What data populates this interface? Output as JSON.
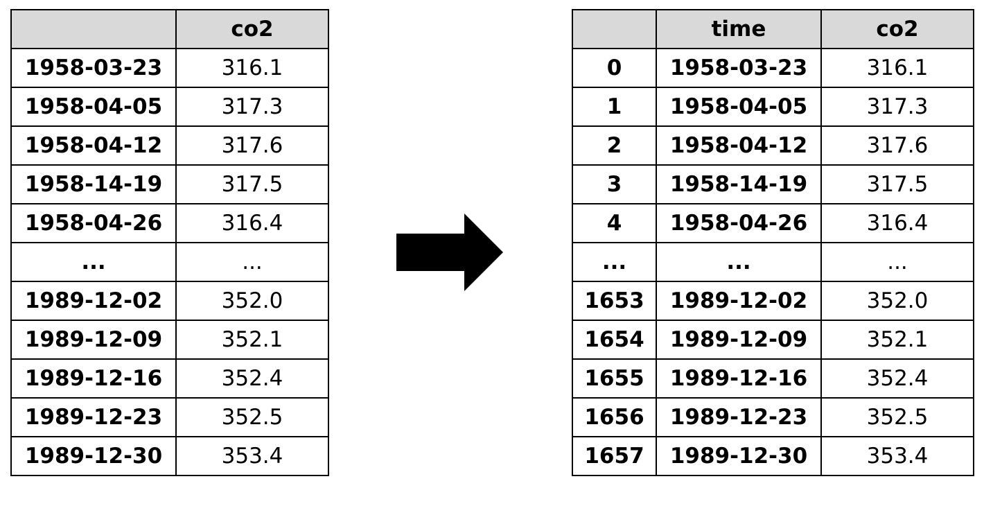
{
  "left_table": {
    "columns": [
      "",
      "co2"
    ],
    "rows": [
      [
        "1958-03-23",
        "316.1"
      ],
      [
        "1958-04-05",
        "317.3"
      ],
      [
        "1958-04-12",
        "317.6"
      ],
      [
        "1958-14-19",
        "317.5"
      ],
      [
        "1958-04-26",
        "316.4"
      ],
      [
        "...",
        "..."
      ],
      [
        "1989-12-02",
        "352.0"
      ],
      [
        "1989-12-09",
        "352.1"
      ],
      [
        "1989-12-16",
        "352.4"
      ],
      [
        "1989-12-23",
        "352.5"
      ],
      [
        "1989-12-30",
        "353.4"
      ]
    ]
  },
  "right_table": {
    "columns": [
      "",
      "time",
      "co2"
    ],
    "rows": [
      [
        "0",
        "1958-03-23",
        "316.1"
      ],
      [
        "1",
        "1958-04-05",
        "317.3"
      ],
      [
        "2",
        "1958-04-12",
        "317.6"
      ],
      [
        "3",
        "1958-14-19",
        "317.5"
      ],
      [
        "4",
        "1958-04-26",
        "316.4"
      ],
      [
        "...",
        "...",
        "..."
      ],
      [
        "1653",
        "1989-12-02",
        "352.0"
      ],
      [
        "1654",
        "1989-12-09",
        "352.1"
      ],
      [
        "1655",
        "1989-12-16",
        "352.4"
      ],
      [
        "1656",
        "1989-12-23",
        "352.5"
      ],
      [
        "1657",
        "1989-12-30",
        "353.4"
      ]
    ]
  },
  "colors": {
    "header_bg": "#d9d9d9",
    "border": "#000000",
    "arrow": "#000000"
  },
  "arrow_icon": "right-arrow-icon"
}
